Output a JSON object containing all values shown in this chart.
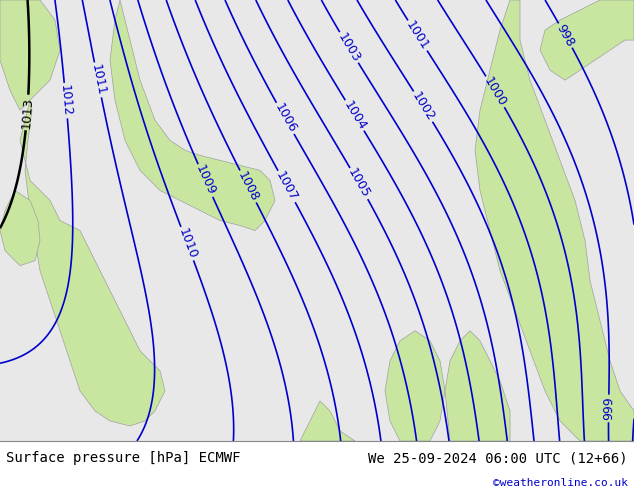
{
  "title_left": "Surface pressure [hPa] ECMWF",
  "title_right": "We 25-09-2024 06:00 UTC (12+66)",
  "watermark": "©weatheronline.co.uk",
  "bg_color_land": "#c8e6a0",
  "bg_color_sea": "#e8e8e8",
  "border_color": "#a0a0a0",
  "contour_color_blue": "#0000cd",
  "contour_color_black": "#000000",
  "contour_color_red": "#cc0000",
  "label_fontsize": 9,
  "title_fontsize": 10,
  "watermark_color": "#0000cc",
  "figsize": [
    6.34,
    4.9
  ],
  "dpi": 100
}
